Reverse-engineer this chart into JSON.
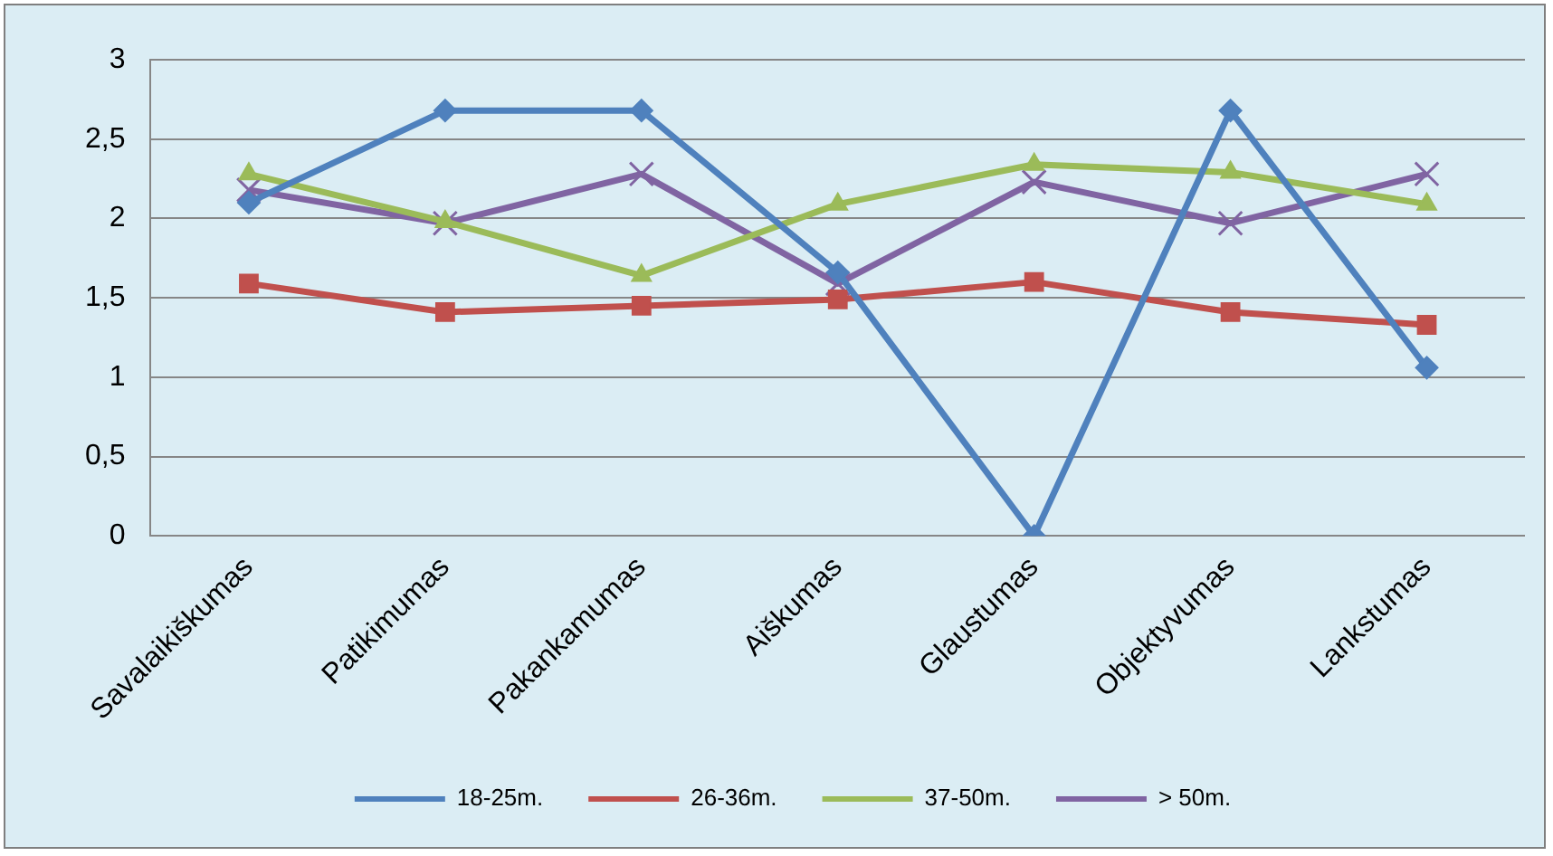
{
  "chart_data": {
    "type": "line",
    "categories": [
      "Savalaikiškumas",
      "Patikimumas",
      "Pakankamumas",
      "Aiškumas",
      "Glaustumas",
      "Objektyvumas",
      "Lankstumas"
    ],
    "series": [
      {
        "name": "18-25m.",
        "color": "#4f81bd",
        "marker": "diamond",
        "values": [
          2.1,
          2.68,
          2.68,
          1.66,
          0,
          2.68,
          1.06
        ]
      },
      {
        "name": "26-36m.",
        "color": "#c0504d",
        "marker": "square",
        "values": [
          1.59,
          1.41,
          1.45,
          1.49,
          1.6,
          1.41,
          1.33
        ]
      },
      {
        "name": "37-50m.",
        "color": "#9bbb59",
        "marker": "triangle",
        "values": [
          2.28,
          1.98,
          1.64,
          2.09,
          2.34,
          2.29,
          2.09
        ]
      },
      {
        "name": "> 50m.",
        "color": "#8064a2",
        "marker": "cross",
        "values": [
          2.18,
          1.97,
          2.28,
          1.59,
          2.23,
          1.97,
          2.28
        ]
      }
    ],
    "ylim": [
      0,
      3
    ],
    "yticks": [
      0,
      {
        "value": 0.5,
        "label": "0,5"
      },
      1,
      {
        "value": 1.5,
        "label": "1,5"
      },
      2,
      {
        "value": 2.5,
        "label": "2,5"
      },
      3
    ],
    "grid": "y",
    "legend": "bottom"
  }
}
